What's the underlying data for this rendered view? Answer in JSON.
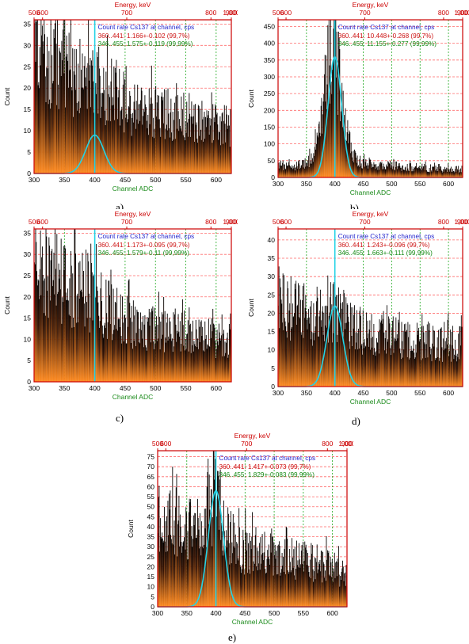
{
  "chart_data": [
    {
      "id": "a",
      "type": "bar",
      "caption": "a)",
      "title": "Energy, keV",
      "xlabel": "Channel ADC",
      "ylabel": "Count",
      "xlim": [
        300,
        625
      ],
      "ylim": [
        0,
        36
      ],
      "x_ticks": [
        "300",
        "350",
        "400",
        "450",
        "500",
        "550",
        "600"
      ],
      "y_ticks": [
        "0",
        "5",
        "10",
        "15",
        "20",
        "25",
        "30",
        "35"
      ],
      "energy_ticks": [
        "500",
        "600",
        "700",
        "800",
        "900",
        "1,000"
      ],
      "legend": {
        "title": "Count rate Cs137 at channel, cps",
        "rows": [
          {
            "range": "360..441:",
            "value": "1.166+-0.102 (99,7%)"
          },
          {
            "range": "346..455:",
            "value": "1.575+-0.119 (99,99%)"
          }
        ]
      },
      "spectrum": [
        [
          300,
          30
        ],
        [
          310,
          29
        ],
        [
          320,
          28
        ],
        [
          340,
          26
        ],
        [
          360,
          24
        ],
        [
          380,
          23
        ],
        [
          400,
          22
        ],
        [
          420,
          20
        ],
        [
          440,
          18
        ],
        [
          460,
          16
        ],
        [
          480,
          15
        ],
        [
          500,
          15
        ],
        [
          520,
          14
        ],
        [
          540,
          13
        ],
        [
          560,
          13
        ],
        [
          580,
          12
        ],
        [
          600,
          12
        ],
        [
          625,
          11
        ]
      ],
      "peak": {
        "center": 400,
        "height": 9,
        "sigma": 15
      },
      "marker_x": 400
    },
    {
      "id": "b",
      "type": "bar",
      "caption": "b)",
      "title": "Energy, keV",
      "xlabel": "Channel ADC",
      "ylabel": "Count",
      "xlim": [
        300,
        625
      ],
      "ylim": [
        0,
        470
      ],
      "x_ticks": [
        "300",
        "350",
        "400",
        "450",
        "500",
        "550",
        "600"
      ],
      "y_ticks": [
        "0",
        "50",
        "100",
        "150",
        "200",
        "250",
        "300",
        "350",
        "400",
        "450"
      ],
      "energy_ticks": [
        "500",
        "600",
        "700",
        "800",
        "900",
        "1,000"
      ],
      "legend": {
        "title": "Count rate Cs137 at channel, cps",
        "rows": [
          {
            "range": "360..441:",
            "value": "10.448+-0.268 (99,7%)"
          },
          {
            "range": "346..455:",
            "value": "11.155+-0.277 (99,99%)"
          }
        ]
      },
      "spectrum": [
        [
          300,
          40
        ],
        [
          340,
          35
        ],
        [
          360,
          60
        ],
        [
          370,
          120
        ],
        [
          380,
          230
        ],
        [
          390,
          380
        ],
        [
          400,
          430
        ],
        [
          410,
          260
        ],
        [
          420,
          120
        ],
        [
          430,
          70
        ],
        [
          440,
          50
        ],
        [
          460,
          40
        ],
        [
          500,
          35
        ],
        [
          550,
          30
        ],
        [
          600,
          25
        ],
        [
          625,
          25
        ]
      ],
      "peak": {
        "center": 400,
        "height": 360,
        "sigma": 12
      },
      "marker_x": 400
    },
    {
      "id": "c",
      "type": "bar",
      "caption": "c)",
      "title": "Energy, keV",
      "xlabel": "Channel ADC",
      "ylabel": "Count",
      "xlim": [
        300,
        625
      ],
      "ylim": [
        0,
        36
      ],
      "x_ticks": [
        "300",
        "350",
        "400",
        "450",
        "500",
        "550",
        "600"
      ],
      "y_ticks": [
        "0",
        "5",
        "10",
        "15",
        "20",
        "25",
        "30",
        "35"
      ],
      "energy_ticks": [
        "500",
        "600",
        "700",
        "800",
        "900",
        "1,000"
      ],
      "legend": {
        "title": "Count rate Cs137 at channel, cps",
        "rows": [
          {
            "range": "360..441:",
            "value": "1.173+-0.095 (99,7%)"
          },
          {
            "range": "346..455:",
            "value": "1.579+-0.11 (99,99%)"
          }
        ]
      },
      "spectrum": [
        [
          300,
          28
        ],
        [
          320,
          26
        ],
        [
          340,
          25
        ],
        [
          360,
          23
        ],
        [
          380,
          22
        ],
        [
          400,
          20
        ],
        [
          420,
          18
        ],
        [
          440,
          16
        ],
        [
          460,
          14
        ],
        [
          480,
          13
        ],
        [
          500,
          13
        ],
        [
          520,
          12
        ],
        [
          540,
          12
        ],
        [
          560,
          11
        ],
        [
          580,
          11
        ],
        [
          600,
          10
        ],
        [
          625,
          10
        ]
      ],
      "peak": null,
      "marker_x": 400
    },
    {
      "id": "d",
      "type": "bar",
      "caption": "d)",
      "title": "Energy, keV",
      "xlabel": "Channel ADC",
      "ylabel": "Count",
      "xlim": [
        300,
        625
      ],
      "ylim": [
        0,
        43
      ],
      "x_ticks": [
        "300",
        "350",
        "400",
        "450",
        "500",
        "550",
        "600"
      ],
      "y_ticks": [
        "0",
        "5",
        "10",
        "15",
        "20",
        "25",
        "30",
        "35",
        "40"
      ],
      "energy_ticks": [
        "500",
        "600",
        "700",
        "800",
        "900",
        "1,000"
      ],
      "legend": {
        "title": "Count rate Cs137 at channel, cps",
        "rows": [
          {
            "range": "360..441:",
            "value": "1.243+-0.096 (99,7%)"
          },
          {
            "range": "346..455:",
            "value": "1.663+-0.111 (99,99%)"
          }
        ]
      },
      "spectrum": [
        [
          300,
          24
        ],
        [
          320,
          22
        ],
        [
          340,
          21
        ],
        [
          360,
          20
        ],
        [
          380,
          20
        ],
        [
          400,
          22
        ],
        [
          420,
          18
        ],
        [
          440,
          16
        ],
        [
          460,
          15
        ],
        [
          480,
          14
        ],
        [
          500,
          14
        ],
        [
          520,
          13
        ],
        [
          540,
          13
        ],
        [
          560,
          13
        ],
        [
          580,
          12
        ],
        [
          600,
          12
        ],
        [
          625,
          12
        ]
      ],
      "peak": {
        "center": 400,
        "height": 22,
        "sigma": 14
      },
      "marker_x": 400
    },
    {
      "id": "e",
      "type": "bar",
      "caption": "e)",
      "title": "Energy, keV",
      "xlabel": "Channel ADC",
      "ylabel": "Count",
      "xlim": [
        300,
        625
      ],
      "ylim": [
        0,
        78
      ],
      "x_ticks": [
        "300",
        "350",
        "400",
        "450",
        "500",
        "550",
        "600"
      ],
      "y_ticks": [
        "0",
        "5",
        "10",
        "15",
        "20",
        "25",
        "30",
        "35",
        "40",
        "45",
        "50",
        "55",
        "60",
        "65",
        "70",
        "75"
      ],
      "energy_ticks": [
        "500",
        "600",
        "700",
        "800",
        "900",
        "1,000"
      ],
      "legend": {
        "title": "Count rate Cs137 at channel, cps",
        "rows": [
          {
            "range": "360..441:",
            "value": "1.417+-0.073 (99,7%)"
          },
          {
            "range": "346..455:",
            "value": "1.829+-0.083 (99,99%)"
          }
        ]
      },
      "spectrum": [
        [
          300,
          44
        ],
        [
          320,
          42
        ],
        [
          340,
          40
        ],
        [
          360,
          39
        ],
        [
          380,
          42
        ],
        [
          390,
          50
        ],
        [
          400,
          58
        ],
        [
          410,
          48
        ],
        [
          420,
          36
        ],
        [
          440,
          30
        ],
        [
          460,
          28
        ],
        [
          480,
          27
        ],
        [
          500,
          26
        ],
        [
          520,
          25
        ],
        [
          540,
          24
        ],
        [
          560,
          23
        ],
        [
          580,
          22
        ],
        [
          600,
          20
        ],
        [
          625,
          16
        ]
      ],
      "peak": {
        "center": 400,
        "height": 58,
        "sigma": 13
      },
      "marker_x": 400
    }
  ],
  "colors": {
    "plot_border": "#cc0000",
    "energy_axis": "#cc0000",
    "energy_label": "#cc0000",
    "grid_red": "#ff6a6a",
    "grid_green": "#22aa22",
    "xlabel": "#1a8a1a",
    "fit_curve": "#22d3e6",
    "marker": "#22d3e6",
    "legend_title": "#2222cc",
    "legend_row1": "#cc1111",
    "legend_row2": "#118811",
    "bar_top": "#000000",
    "bar_bottom": "#ff8a1f"
  }
}
